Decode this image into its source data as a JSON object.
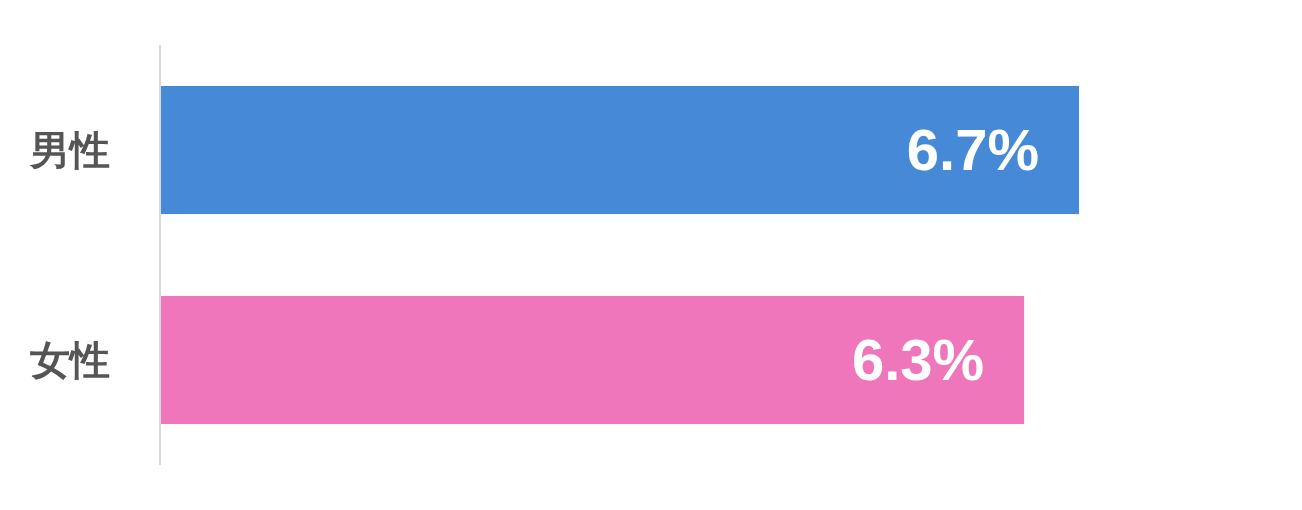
{
  "chart_data": {
    "type": "bar",
    "orientation": "horizontal",
    "categories": [
      "男性",
      "女性"
    ],
    "values": [
      6.7,
      6.3
    ],
    "colors": [
      "#4689d6",
      "#f076bb"
    ],
    "value_labels": [
      "6.7%",
      "6.3%"
    ]
  }
}
